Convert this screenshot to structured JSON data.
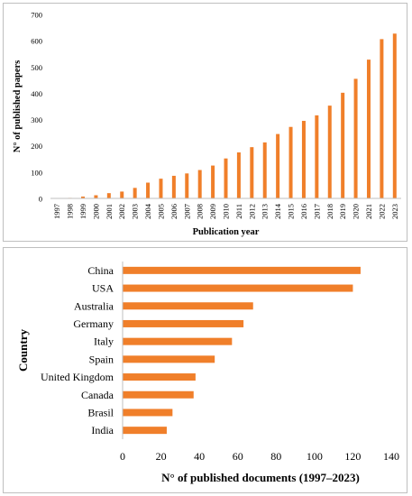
{
  "colors": {
    "bar": "#f07f2a",
    "axis": "#bfbfbf",
    "grid": "#d9d9d9"
  },
  "chart_data": [
    {
      "type": "bar",
      "orientation": "vertical",
      "title": "",
      "xlabel": "Publication year",
      "ylabel": "N° of published papers",
      "ylim": [
        0,
        700
      ],
      "yticks": [
        0,
        100,
        200,
        300,
        400,
        500,
        600,
        700
      ],
      "categories": [
        "1997",
        "1998",
        "1999",
        "2000",
        "2001",
        "2002",
        "2003",
        "2004",
        "2005",
        "2006",
        "2007",
        "2008",
        "2009",
        "2010",
        "2011",
        "2012",
        "2013",
        "2014",
        "2015",
        "2016",
        "2017",
        "2018",
        "2019",
        "2020",
        "2021",
        "2022",
        "2023"
      ],
      "values": [
        1,
        2,
        7,
        12,
        20,
        26,
        40,
        60,
        75,
        86,
        95,
        108,
        125,
        152,
        175,
        195,
        213,
        245,
        272,
        295,
        316,
        353,
        402,
        455,
        528,
        606,
        627
      ],
      "grid": false,
      "legend": "none"
    },
    {
      "type": "bar",
      "orientation": "horizontal",
      "title": "",
      "xlabel": "N° of published documents (1997–2023)",
      "ylabel": "Country",
      "xlim": [
        0,
        140
      ],
      "xticks": [
        0,
        20,
        40,
        60,
        80,
        100,
        120,
        140
      ],
      "categories": [
        "China",
        "USA",
        "Australia",
        "Germany",
        "Italy",
        "Spain",
        "United Kingdom",
        "Canada",
        "Brasil",
        "India"
      ],
      "values": [
        124,
        120,
        68,
        63,
        57,
        48,
        38,
        37,
        26,
        23
      ],
      "grid": false,
      "legend": "none"
    }
  ]
}
